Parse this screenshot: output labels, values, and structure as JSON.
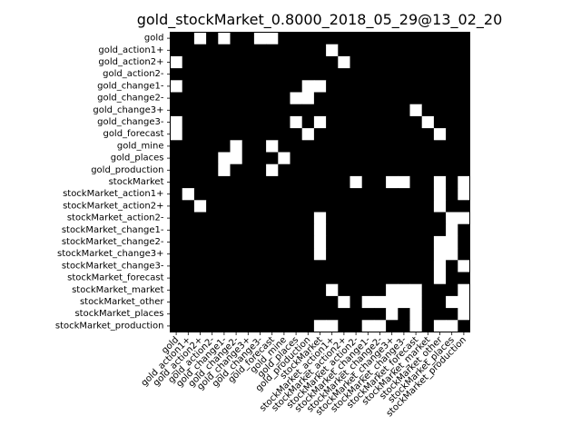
{
  "chart_data": {
    "type": "heatmap",
    "title": "gold_stockMarket_0.8000_2018_05_29@13_02_20",
    "labels": [
      "gold",
      "gold_action1+",
      "gold_action2+",
      "gold_action2-",
      "gold_change1-",
      "gold_change2-",
      "gold_change3+",
      "gold_change3-",
      "gold_forecast",
      "gold_mine",
      "gold_places",
      "gold_production",
      "stockMarket",
      "stockMarket_action1+",
      "stockMarket_action2+",
      "stockMarket_action2-",
      "stockMarket_change1-",
      "stockMarket_change2-",
      "stockMarket_change3+",
      "stockMarket_change3-",
      "stockMarket_forecast",
      "stockMarket_market",
      "stockMarket_other",
      "stockMarket_places",
      "stockMarket_production"
    ],
    "colors": {
      "0": "#000000",
      "1": "#ffffff"
    },
    "grid": false,
    "matrix": [
      "0010100110000000000000000",
      "0000000000000100000000000",
      "1000000000000010000000000",
      "0000000000000000000000000",
      "1000000000011000000000000",
      "0000000000110000000000000",
      "0000000000000000000010000",
      "1000000000101000000001000",
      "1000000000010000000000100",
      "0000010010000000000000000",
      "0000110001000000000000000",
      "0000100010000000000000000",
      "0000000000000001001100101",
      "0100000000000000000000101",
      "0010000000000000000000100",
      "0000000000001000000000011",
      "0000000000001000000000010",
      "0000000000001000000000110",
      "0000000000001000000000110",
      "0000000000000000000000101",
      "0000000000000000000000100",
      "0000000000000100001110001",
      "0000000000000010111110011",
      "0000000000000000001010001",
      "0000000000001100110010110"
    ]
  }
}
